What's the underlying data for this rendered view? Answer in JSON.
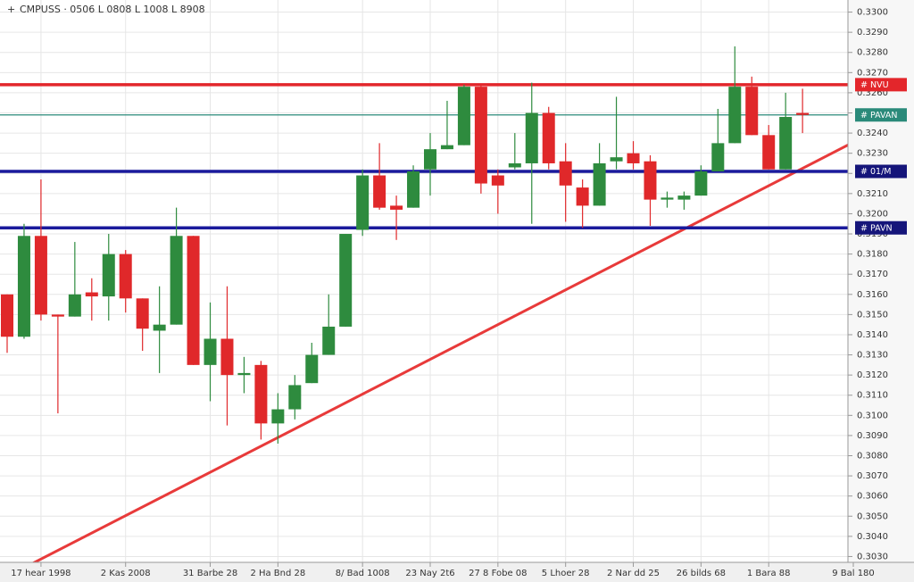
{
  "chart_data": {
    "type": "candlestick",
    "header": "CMPUSS · 0506 L 0808 L 1008 L 8908",
    "categories": [
      null,
      null,
      "17 hear 1998",
      null,
      null,
      null,
      null,
      "2 Kas 2008",
      null,
      null,
      null,
      null,
      "31 Barbe 28",
      null,
      null,
      null,
      "2 Ha Bnd 28",
      null,
      null,
      null,
      null,
      "8/ Bad 1008",
      null,
      null,
      null,
      "23 Nay 2t6",
      null,
      null,
      null,
      "27 8 Fobe 08",
      null,
      null,
      null,
      "5 Lhoer 28",
      null,
      null,
      null,
      "2 Nar dd 25",
      null,
      null,
      null,
      "26 bilds 68",
      null,
      null,
      null,
      "1 Bara 88",
      null,
      null,
      null,
      null,
      "9 Bal 180"
    ],
    "open": [
      0.316,
      0.3139,
      0.3189,
      0.315,
      0.3149,
      0.3161,
      0.3159,
      0.318,
      0.3158,
      0.3142,
      0.3145,
      0.3189,
      0.3125,
      0.3138,
      0.312,
      0.3125,
      0.3096,
      0.3103,
      0.3116,
      0.313,
      0.3144,
      0.3192,
      0.3219,
      0.3204,
      0.3203,
      0.3222,
      0.3232,
      0.3234,
      0.3263,
      0.3219,
      0.3223,
      0.3225,
      0.325,
      0.3226,
      0.3213,
      0.3204,
      0.3226,
      0.323,
      0.3226,
      0.3207,
      0.3207,
      0.3209,
      0.3221,
      0.3235,
      0.3263,
      0.3239,
      0.3222,
      0.325,
      null,
      null,
      null
    ],
    "high": [
      0.316,
      0.3195,
      0.3217,
      0.315,
      0.3186,
      0.3168,
      0.319,
      0.3182,
      0.3158,
      0.3164,
      0.3203,
      0.3189,
      0.3156,
      0.3164,
      0.3129,
      0.3127,
      0.3111,
      0.312,
      0.3136,
      0.316,
      0.319,
      0.3222,
      0.3235,
      0.3209,
      0.3224,
      0.324,
      0.3256,
      0.3264,
      0.3264,
      0.3222,
      0.324,
      0.3265,
      0.3253,
      0.3235,
      0.3217,
      0.3235,
      0.3258,
      0.3236,
      0.3229,
      0.3211,
      0.3211,
      0.3224,
      0.3252,
      0.3283,
      0.3268,
      0.3244,
      0.326,
      0.3262,
      null,
      null,
      null
    ],
    "low": [
      0.3131,
      0.3138,
      0.3147,
      0.3101,
      0.3149,
      0.3147,
      0.3147,
      0.3151,
      0.3132,
      0.3121,
      0.3145,
      0.3125,
      0.3107,
      0.3095,
      0.3111,
      0.3088,
      0.3086,
      0.3098,
      0.3116,
      0.313,
      0.3144,
      0.3189,
      0.3202,
      0.3187,
      0.3203,
      0.3209,
      0.3232,
      0.3234,
      0.321,
      0.32,
      0.3222,
      0.3195,
      0.3222,
      0.3196,
      0.3193,
      0.3204,
      0.3222,
      0.3222,
      0.3194,
      0.3203,
      0.3202,
      0.3209,
      0.3221,
      0.3235,
      0.3239,
      0.3222,
      0.3222,
      0.324,
      null,
      null,
      null
    ],
    "close": [
      0.3139,
      0.3189,
      0.315,
      0.3149,
      0.316,
      0.3159,
      0.318,
      0.3158,
      0.3143,
      0.3145,
      0.3189,
      0.3125,
      0.3138,
      0.312,
      0.3121,
      0.3096,
      0.3103,
      0.3115,
      0.313,
      0.3144,
      0.319,
      0.3219,
      0.3203,
      0.3202,
      0.3221,
      0.3232,
      0.3234,
      0.3263,
      0.3215,
      0.3214,
      0.3225,
      0.325,
      0.3225,
      0.3214,
      0.3204,
      0.3225,
      0.3228,
      0.3225,
      0.3207,
      0.3208,
      0.3209,
      0.3221,
      0.3235,
      0.3263,
      0.3239,
      0.3222,
      0.3248,
      0.3249,
      null,
      null,
      null
    ],
    "up_color": "#2e8b3e",
    "down_color": "#e0282a",
    "levels": [
      {
        "name": "# NVU",
        "color": "#e3262b",
        "value": 0.3264
      },
      {
        "name": "# PAVAN",
        "color": "#2a8a7a",
        "value": 0.3249
      },
      {
        "name": "# 01/M",
        "color": "#1a1a9c",
        "value": 0.3221
      },
      {
        "name": "# PAVN",
        "color": "#1a1a9c",
        "value": 0.3193
      }
    ],
    "trendline": {
      "color": "#e83a3a",
      "x": [
        0.9,
        49.9
      ],
      "values": [
        0.3024,
        0.3235
      ]
    },
    "ylim": [
      0.3024,
      0.3306
    ],
    "yticks": [
      {
        "value": 0.33,
        "label": "0.3300"
      },
      {
        "value": 0.329,
        "label": "0.3290"
      },
      {
        "value": 0.328,
        "label": "0.3280"
      },
      {
        "value": 0.327,
        "label": "0.3270"
      },
      {
        "value": 0.326,
        "label": "0.3260"
      },
      {
        "value": 0.325,
        "label": "0.3250"
      },
      {
        "value": 0.324,
        "label": "0.3240"
      },
      {
        "value": 0.323,
        "label": "0.3230"
      },
      {
        "value": 0.322,
        "label": "0.3220"
      },
      {
        "value": 0.321,
        "label": "0.3210"
      },
      {
        "value": 0.32,
        "label": "0.3200"
      },
      {
        "value": 0.319,
        "label": "0.3190"
      },
      {
        "value": 0.318,
        "label": "0.3180"
      },
      {
        "value": 0.317,
        "label": "0.3170"
      },
      {
        "value": 0.316,
        "label": "0.3160"
      },
      {
        "value": 0.315,
        "label": "0.3150"
      },
      {
        "value": 0.314,
        "label": "0.3140"
      },
      {
        "value": 0.313,
        "label": "0.3130"
      },
      {
        "value": 0.312,
        "label": "0.3120"
      },
      {
        "value": 0.311,
        "label": "0.3110"
      },
      {
        "value": 0.31,
        "label": "0.3100"
      },
      {
        "value": 0.309,
        "label": "0.3090"
      },
      {
        "value": 0.308,
        "label": "0.3080"
      },
      {
        "value": 0.307,
        "label": "0.3070"
      },
      {
        "value": 0.306,
        "label": "0.3060"
      },
      {
        "value": 0.305,
        "label": "0.3050"
      },
      {
        "value": 0.304,
        "label": "0.3040"
      },
      {
        "value": 0.303,
        "label": "0.3030"
      }
    ],
    "grid": true
  }
}
